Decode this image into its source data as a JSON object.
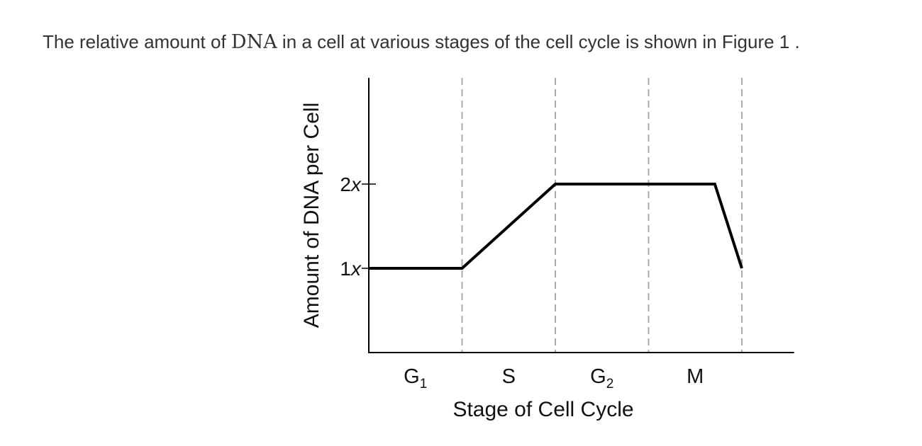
{
  "caption": {
    "before": "The relative amount of ",
    "term": "DNA",
    "after": " in a cell at various stages of the cell cycle is shown in Figure 1 ."
  },
  "chart_data": {
    "type": "line",
    "title": "",
    "xlabel": "Stage of Cell Cycle",
    "ylabel": "Amount of DNA per Cell",
    "categories": [
      {
        "base": "G",
        "sub": "1"
      },
      {
        "base": "S",
        "sub": ""
      },
      {
        "base": "G",
        "sub": "2"
      },
      {
        "base": "M",
        "sub": ""
      }
    ],
    "stage_boundaries": [
      1,
      2,
      3,
      4
    ],
    "yticks": [
      {
        "value": 1,
        "label": "1x"
      },
      {
        "value": 2,
        "label": "2x"
      }
    ],
    "xlim": [
      0,
      4.56
    ],
    "ylim": [
      0,
      3.26
    ],
    "series": [
      {
        "name": "DNA amount",
        "color": "#000000",
        "points": [
          [
            0,
            1
          ],
          [
            1,
            1
          ],
          [
            2,
            2
          ],
          [
            3.71,
            2
          ],
          [
            4,
            1
          ]
        ]
      }
    ],
    "grid": false,
    "divider_color": "#aaaaaa"
  }
}
